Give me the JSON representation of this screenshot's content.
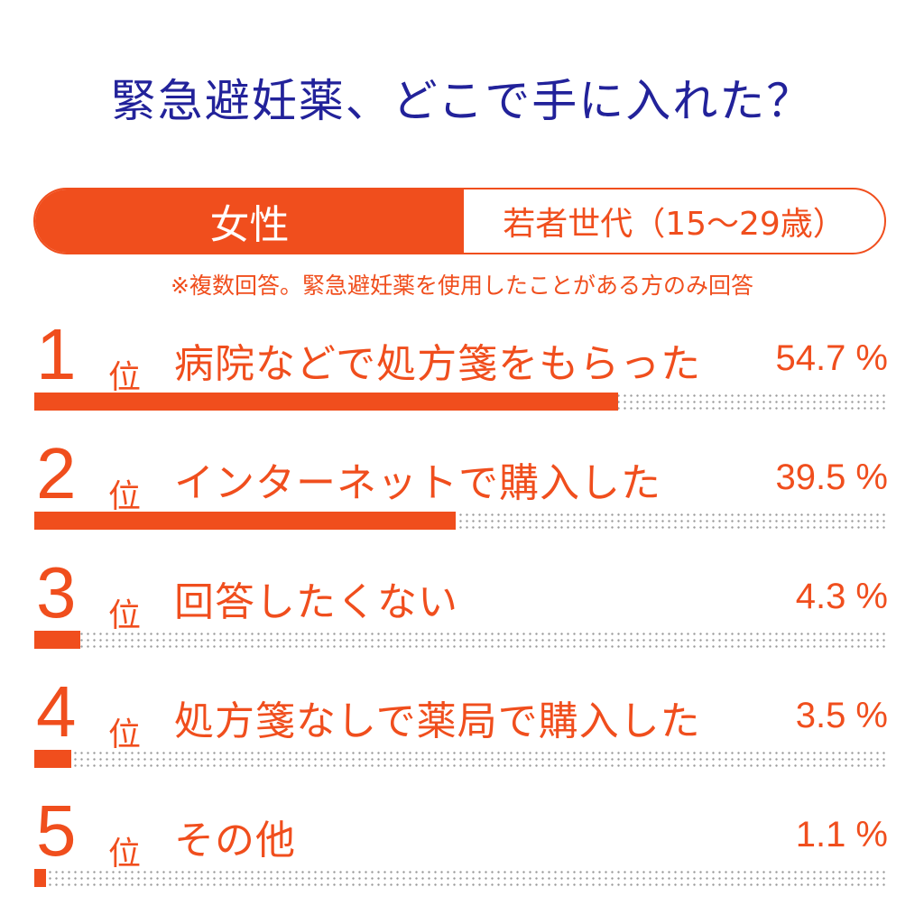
{
  "title": "緊急避妊薬、どこで手に入れた？",
  "segment": {
    "left": "女性",
    "right": "若者世代（15～29歳）"
  },
  "note": "※複数回答。緊急避妊薬を使用したことがある方のみ回答",
  "rank_suffix": "位",
  "colors": {
    "accent": "#f04e1d",
    "title": "#22229a",
    "dots": "#9a9a9a"
  },
  "chart_data": {
    "type": "bar",
    "title": "緊急避妊薬、どこで手に入れた？",
    "categories": [
      "病院などで処方箋をもらった",
      "インターネットで購入した",
      "回答したくない",
      "処方箋なしで薬局で購入した",
      "その他"
    ],
    "values": [
      54.7,
      39.5,
      4.3,
      3.5,
      1.1
    ],
    "ranks": [
      "1",
      "2",
      "3",
      "4",
      "5"
    ],
    "value_labels": [
      "54.7 %",
      "39.5 %",
      "4.3 %",
      "3.5 %",
      "1.1 %"
    ],
    "unit": "%",
    "ylim": [
      0,
      80
    ]
  }
}
